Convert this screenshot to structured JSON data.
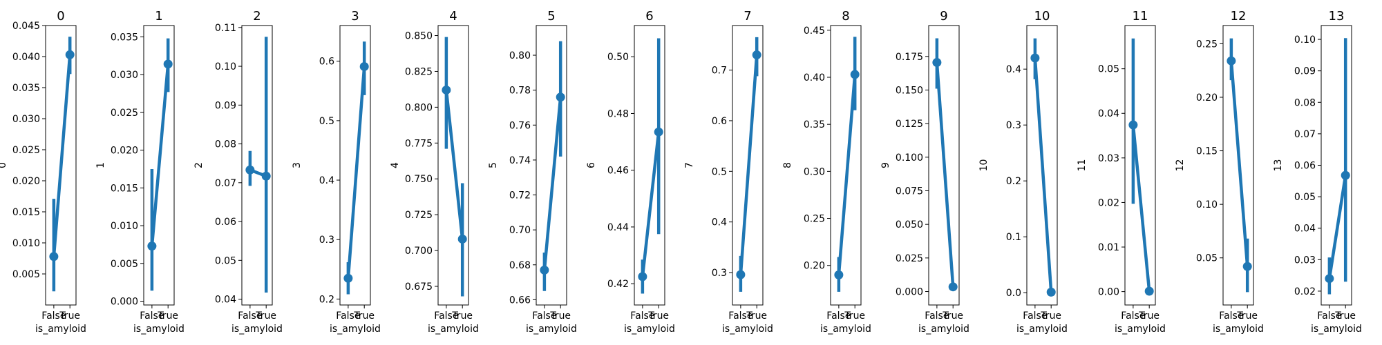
{
  "colors": {
    "series": "#1f77b4",
    "axis": "#000000",
    "background": "#ffffff"
  },
  "chart_data": [
    {
      "type": "line",
      "title": "0",
      "xlabel": "is_amyloid",
      "ylabel": "0",
      "categories": [
        "False",
        "True"
      ],
      "values": [
        0.0078,
        0.0403
      ],
      "ci_low": [
        0.0022,
        0.0372
      ],
      "ci_high": [
        0.0171,
        0.0432
      ],
      "ylim": [
        0.0,
        0.045
      ],
      "yticks": [
        0.005,
        0.01,
        0.015,
        0.02,
        0.025,
        0.03,
        0.035,
        0.04,
        0.045
      ],
      "ytick_labels": [
        "0.005",
        "0.010",
        "0.015",
        "0.020",
        "0.025",
        "0.030",
        "0.035",
        "0.040",
        "0.045"
      ]
    },
    {
      "type": "line",
      "title": "1",
      "xlabel": "is_amyloid",
      "ylabel": "1",
      "categories": [
        "False",
        "True"
      ],
      "values": [
        0.0073,
        0.0314
      ],
      "ci_low": [
        0.0014,
        0.0277
      ],
      "ci_high": [
        0.0175,
        0.0348
      ],
      "ylim": [
        -0.0005,
        0.0365
      ],
      "yticks": [
        0.0,
        0.005,
        0.01,
        0.015,
        0.02,
        0.025,
        0.03,
        0.035
      ],
      "ytick_labels": [
        "0.000",
        "0.005",
        "0.010",
        "0.015",
        "0.020",
        "0.025",
        "0.030",
        "0.035"
      ]
    },
    {
      "type": "line",
      "title": "2",
      "xlabel": "is_amyloid",
      "ylabel": "2",
      "categories": [
        "False",
        "True"
      ],
      "values": [
        0.0733,
        0.0717
      ],
      "ci_low": [
        0.0692,
        0.0417
      ],
      "ci_high": [
        0.0782,
        0.1076
      ],
      "ylim": [
        0.0385,
        0.1105
      ],
      "yticks": [
        0.04,
        0.05,
        0.06,
        0.07,
        0.08,
        0.09,
        0.1,
        0.11
      ],
      "ytick_labels": [
        "0.04",
        "0.05",
        "0.06",
        "0.07",
        "0.08",
        "0.09",
        "0.10",
        "0.11"
      ]
    },
    {
      "type": "line",
      "title": "3",
      "xlabel": "is_amyloid",
      "ylabel": "3",
      "categories": [
        "False",
        "True"
      ],
      "values": [
        0.235,
        0.591
      ],
      "ci_low": [
        0.208,
        0.543
      ],
      "ci_high": [
        0.262,
        0.633
      ],
      "ylim": [
        0.19,
        0.66
      ],
      "yticks": [
        0.2,
        0.3,
        0.4,
        0.5,
        0.6
      ],
      "ytick_labels": [
        "0.2",
        "0.3",
        "0.4",
        "0.5",
        "0.6"
      ]
    },
    {
      "type": "line",
      "title": "4",
      "xlabel": "is_amyloid",
      "ylabel": "4",
      "categories": [
        "False",
        "True"
      ],
      "values": [
        0.812,
        0.708
      ],
      "ci_low": [
        0.771,
        0.668
      ],
      "ci_high": [
        0.849,
        0.747
      ],
      "ylim": [
        0.662,
        0.857
      ],
      "yticks": [
        0.675,
        0.7,
        0.725,
        0.75,
        0.775,
        0.8,
        0.825,
        0.85
      ],
      "ytick_labels": [
        "0.675",
        "0.700",
        "0.725",
        "0.750",
        "0.775",
        "0.800",
        "0.825",
        "0.850"
      ]
    },
    {
      "type": "line",
      "title": "5",
      "xlabel": "is_amyloid",
      "ylabel": "5",
      "categories": [
        "False",
        "True"
      ],
      "values": [
        0.677,
        0.776
      ],
      "ci_low": [
        0.665,
        0.742
      ],
      "ci_high": [
        0.687,
        0.808
      ],
      "ylim": [
        0.657,
        0.817
      ],
      "yticks": [
        0.66,
        0.68,
        0.7,
        0.72,
        0.74,
        0.76,
        0.78,
        0.8
      ],
      "ytick_labels": [
        "0.66",
        "0.68",
        "0.70",
        "0.72",
        "0.74",
        "0.76",
        "0.78",
        "0.80"
      ]
    },
    {
      "type": "line",
      "title": "6",
      "xlabel": "is_amyloid",
      "ylabel": "6",
      "categories": [
        "False",
        "True"
      ],
      "values": [
        0.4225,
        0.4735
      ],
      "ci_low": [
        0.4165,
        0.4375
      ],
      "ci_high": [
        0.4285,
        0.5065
      ],
      "ylim": [
        0.4125,
        0.511
      ],
      "yticks": [
        0.42,
        0.44,
        0.46,
        0.48,
        0.5
      ],
      "ytick_labels": [
        "0.42",
        "0.44",
        "0.46",
        "0.48",
        "0.50"
      ]
    },
    {
      "type": "line",
      "title": "7",
      "xlabel": "is_amyloid",
      "ylabel": "7",
      "categories": [
        "False",
        "True"
      ],
      "values": [
        0.296,
        0.73
      ],
      "ci_low": [
        0.262,
        0.688
      ],
      "ci_high": [
        0.333,
        0.765
      ],
      "ylim": [
        0.236,
        0.788
      ],
      "yticks": [
        0.3,
        0.4,
        0.5,
        0.6,
        0.7
      ],
      "ytick_labels": [
        "0.3",
        "0.4",
        "0.5",
        "0.6",
        "0.7"
      ]
    },
    {
      "type": "line",
      "title": "8",
      "xlabel": "is_amyloid",
      "ylabel": "8",
      "categories": [
        "False",
        "True"
      ],
      "values": [
        0.19,
        0.403
      ],
      "ci_low": [
        0.172,
        0.365
      ],
      "ci_high": [
        0.209,
        0.443
      ],
      "ylim": [
        0.158,
        0.455
      ],
      "yticks": [
        0.2,
        0.25,
        0.3,
        0.35,
        0.4,
        0.45
      ],
      "ytick_labels": [
        "0.20",
        "0.25",
        "0.30",
        "0.35",
        "0.40",
        "0.45"
      ]
    },
    {
      "type": "line",
      "title": "9",
      "xlabel": "is_amyloid",
      "ylabel": "9",
      "categories": [
        "False",
        "True"
      ],
      "values": [
        0.1705,
        0.0035
      ],
      "ci_low": [
        0.151,
        0.0015
      ],
      "ci_high": [
        0.1885,
        0.0055
      ],
      "ylim": [
        -0.01,
        0.198
      ],
      "yticks": [
        0.0,
        0.025,
        0.05,
        0.075,
        0.1,
        0.125,
        0.15,
        0.175
      ],
      "ytick_labels": [
        "0.000",
        "0.025",
        "0.050",
        "0.075",
        "0.100",
        "0.125",
        "0.150",
        "0.175"
      ]
    },
    {
      "type": "line",
      "title": "10",
      "xlabel": "is_amyloid",
      "ylabel": "10",
      "categories": [
        "False",
        "True"
      ],
      "values": [
        0.42,
        0.001
      ],
      "ci_low": [
        0.382,
        0.0
      ],
      "ci_high": [
        0.455,
        0.002
      ],
      "ylim": [
        -0.022,
        0.478
      ],
      "yticks": [
        0.0,
        0.1,
        0.2,
        0.3,
        0.4
      ],
      "ytick_labels": [
        "0.0",
        "0.1",
        "0.2",
        "0.3",
        "0.4"
      ]
    },
    {
      "type": "line",
      "title": "11",
      "xlabel": "is_amyloid",
      "ylabel": "11",
      "categories": [
        "False",
        "True"
      ],
      "values": [
        0.0374,
        0.0001
      ],
      "ci_low": [
        0.0197,
        0.0
      ],
      "ci_high": [
        0.0568,
        0.0002
      ],
      "ylim": [
        -0.003,
        0.0597
      ],
      "yticks": [
        0.0,
        0.01,
        0.02,
        0.03,
        0.04,
        0.05
      ],
      "ytick_labels": [
        "0.00",
        "0.01",
        "0.02",
        "0.03",
        "0.04",
        "0.05"
      ]
    },
    {
      "type": "line",
      "title": "12",
      "xlabel": "is_amyloid",
      "ylabel": "12",
      "categories": [
        "False",
        "True"
      ],
      "values": [
        0.234,
        0.042
      ],
      "ci_low": [
        0.216,
        0.018
      ],
      "ci_high": [
        0.255,
        0.068
      ],
      "ylim": [
        0.006,
        0.267
      ],
      "yticks": [
        0.05,
        0.1,
        0.15,
        0.2,
        0.25
      ],
      "ytick_labels": [
        "0.05",
        "0.10",
        "0.15",
        "0.20",
        "0.25"
      ]
    },
    {
      "type": "line",
      "title": "13",
      "xlabel": "is_amyloid",
      "ylabel": "13",
      "categories": [
        "False",
        "True"
      ],
      "values": [
        0.024,
        0.0568
      ],
      "ci_low": [
        0.019,
        0.023
      ],
      "ci_high": [
        0.0307,
        0.1004
      ],
      "ylim": [
        0.0156,
        0.1044
      ],
      "yticks": [
        0.02,
        0.03,
        0.04,
        0.05,
        0.06,
        0.07,
        0.08,
        0.09,
        0.1
      ],
      "ytick_labels": [
        "0.02",
        "0.03",
        "0.04",
        "0.05",
        "0.06",
        "0.07",
        "0.08",
        "0.09",
        "0.10"
      ]
    }
  ]
}
